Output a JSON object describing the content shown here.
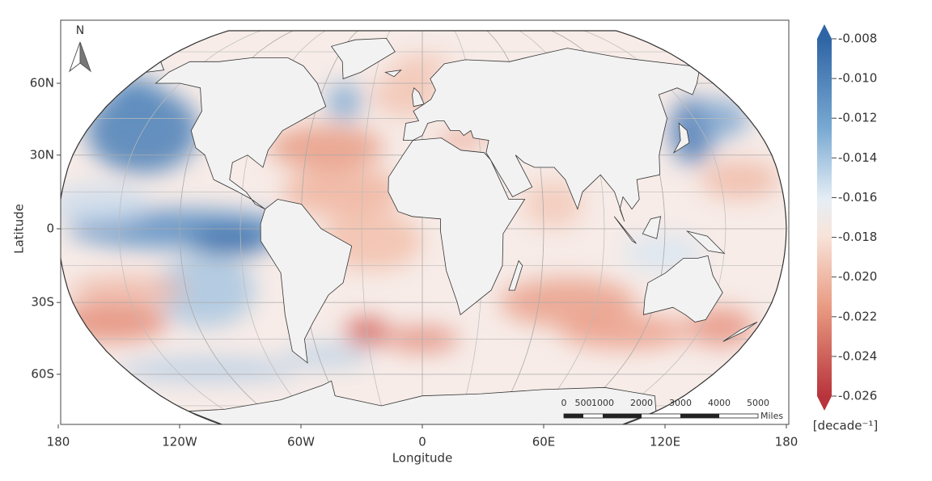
{
  "map": {
    "north_arrow": "N",
    "x_label": "Longitude",
    "y_label": "Latitude",
    "xticks": [
      {
        "value": -180,
        "label": "180"
      },
      {
        "value": -120,
        "label": "120W"
      },
      {
        "value": -60,
        "label": "60W"
      },
      {
        "value": 0,
        "label": "0"
      },
      {
        "value": 60,
        "label": "60E"
      },
      {
        "value": 120,
        "label": "120E"
      },
      {
        "value": 180,
        "label": "180"
      }
    ],
    "yticks": [
      {
        "value": 60,
        "label": "60N"
      },
      {
        "value": 30,
        "label": "30N"
      },
      {
        "value": 0,
        "label": "0"
      },
      {
        "value": -30,
        "label": "30S"
      },
      {
        "value": -60,
        "label": "60S"
      }
    ],
    "colorbar": {
      "label": "[decade⁻¹]",
      "lim": [
        -0.026,
        -0.008
      ],
      "ticks": [
        {
          "value": -0.008,
          "label": "-0.008"
        },
        {
          "value": -0.01,
          "label": "-0.010"
        },
        {
          "value": -0.012,
          "label": "-0.012"
        },
        {
          "value": -0.014,
          "label": "-0.014"
        },
        {
          "value": -0.016,
          "label": "-0.016"
        },
        {
          "value": -0.018,
          "label": "-0.018"
        },
        {
          "value": -0.02,
          "label": "-0.020"
        },
        {
          "value": -0.022,
          "label": "-0.022"
        },
        {
          "value": -0.024,
          "label": "-0.024"
        },
        {
          "value": -0.026,
          "label": "-0.026"
        }
      ]
    },
    "scale_bar": {
      "ticks": [
        0,
        500,
        1000,
        2000,
        3000,
        4000,
        5000
      ],
      "unit": "Miles"
    }
  }
}
